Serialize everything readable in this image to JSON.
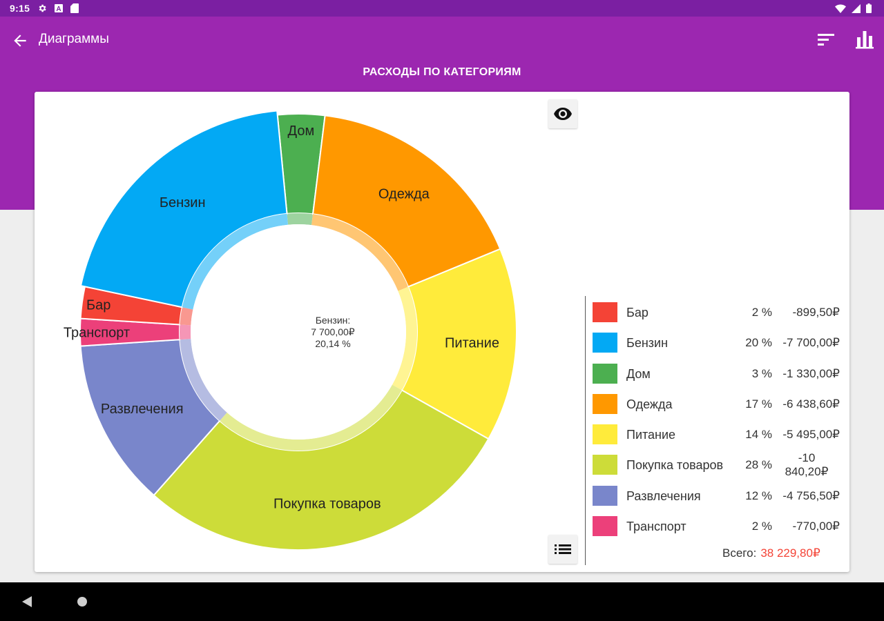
{
  "status_bar": {
    "time": "9:15",
    "left_icons": [
      "settings-icon",
      "a-notification-icon",
      "sd-card-icon"
    ],
    "right_icons": [
      "wifi-icon",
      "signal-icon",
      "battery-icon"
    ]
  },
  "app_bar": {
    "title": "Диаграммы",
    "back_icon": "arrow-back-icon",
    "actions": [
      "sort-icon",
      "bar-chart-icon"
    ]
  },
  "heading": "РАСХОДЫ ПО КАТЕГОРИЯМ",
  "center_label": {
    "line1": "Бензин:",
    "line2": "7 700,00₽",
    "line3": "20,14 %"
  },
  "legend": {
    "items": [
      {
        "name": "Бар",
        "percent": "2 %",
        "amount": "-899,50₽",
        "color": "#f44336"
      },
      {
        "name": "Бензин",
        "percent": "20 %",
        "amount": "-7 700,00₽",
        "color": "#03a9f4"
      },
      {
        "name": "Дом",
        "percent": "3 %",
        "amount": "-1 330,00₽",
        "color": "#4caf50"
      },
      {
        "name": "Одежда",
        "percent": "17 %",
        "amount": "-6 438,60₽",
        "color": "#ff9800"
      },
      {
        "name": "Питание",
        "percent": "14 %",
        "amount": "-5 495,00₽",
        "color": "#ffeb3b"
      },
      {
        "name": "Покупка товаров",
        "percent": "28 %",
        "amount": "-10 840,20₽",
        "color": "#cddc39"
      },
      {
        "name": "Развлечения",
        "percent": "12 %",
        "amount": "-4 756,50₽",
        "color": "#7986cb"
      },
      {
        "name": "Транспорт",
        "percent": "2 %",
        "amount": "-770,00₽",
        "color": "#ec407a"
      }
    ],
    "total_label": "Всего:",
    "total_value": "38 229,80₽",
    "total_color": "#f44336"
  },
  "chart_data": {
    "type": "pie",
    "title": "РАСХОДЫ ПО КАТЕГОРИЯМ",
    "categories": [
      "Дом",
      "Одежда",
      "Питание",
      "Покупка товаров",
      "Развлечения",
      "Транспорт",
      "Бар",
      "Бензин"
    ],
    "values": [
      1330.0,
      6438.6,
      5495.0,
      10840.2,
      4756.5,
      770.0,
      899.5,
      7700.0
    ],
    "colors": [
      "#4caf50",
      "#ff9800",
      "#ffeb3b",
      "#cddc39",
      "#7986cb",
      "#ec407a",
      "#f44336",
      "#03a9f4"
    ],
    "selected": "Бензин",
    "total": 38229.8
  },
  "nav_bar": {
    "icons": [
      "nav-back-icon",
      "nav-home-icon"
    ]
  }
}
